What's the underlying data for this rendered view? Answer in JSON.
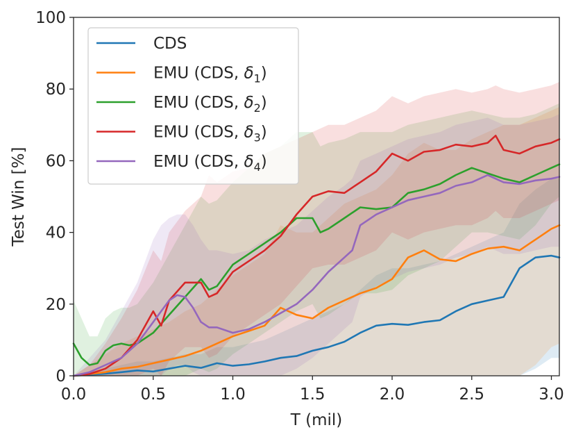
{
  "chart_data": {
    "type": "line",
    "title": "",
    "xlabel": "T (mil)",
    "ylabel": "Test Win [%]",
    "xlim": [
      0.0,
      3.05
    ],
    "ylim": [
      0,
      100
    ],
    "xticks": [
      0.0,
      0.5,
      1.0,
      1.5,
      2.0,
      2.5,
      3.0
    ],
    "xtick_labels": [
      "0.0",
      "0.5",
      "1.0",
      "1.5",
      "2.0",
      "2.5",
      "3.0"
    ],
    "yticks": [
      0,
      20,
      40,
      60,
      80,
      100
    ],
    "ytick_labels": [
      "0",
      "20",
      "40",
      "60",
      "80",
      "100"
    ],
    "grid": false,
    "legend_position": "top-left",
    "series": [
      {
        "name": "CDS",
        "legend": {
          "prefix": "CDS",
          "symbol": "",
          "sub": "",
          "suffix": ""
        },
        "color": "#1f77b4",
        "x": [
          0.0,
          0.1,
          0.2,
          0.3,
          0.4,
          0.5,
          0.6,
          0.7,
          0.8,
          0.9,
          1.0,
          1.1,
          1.2,
          1.3,
          1.4,
          1.5,
          1.6,
          1.7,
          1.8,
          1.9,
          2.0,
          2.1,
          2.2,
          2.3,
          2.4,
          2.5,
          2.6,
          2.7,
          2.8,
          2.9,
          3.0,
          3.05
        ],
        "y": [
          0.0,
          0.3,
          0.6,
          1.0,
          1.5,
          1.2,
          2.0,
          2.8,
          2.2,
          3.5,
          2.8,
          3.2,
          4.0,
          5.0,
          5.5,
          7.0,
          8.0,
          9.5,
          12.0,
          14.0,
          14.5,
          14.2,
          15.0,
          15.5,
          18.0,
          20.0,
          21.0,
          22.0,
          30.0,
          33.0,
          33.5,
          33.0
        ],
        "band_low": [
          0.0,
          0.0,
          0.0,
          0.0,
          0.0,
          0.0,
          0.0,
          0.0,
          0.0,
          0.0,
          0.0,
          0.0,
          0.0,
          0.0,
          0.0,
          0.0,
          0.0,
          0.0,
          0.0,
          0.0,
          0.0,
          0.0,
          0.0,
          0.0,
          0.0,
          0.0,
          0.0,
          0.0,
          0.0,
          2.0,
          5.0,
          5.0
        ],
        "band_high": [
          0.0,
          1.0,
          2.0,
          3.0,
          4.0,
          4.0,
          5.0,
          6.0,
          6.0,
          8.0,
          8.0,
          9.0,
          10.0,
          12.0,
          14.0,
          16.0,
          18.0,
          20.0,
          24.0,
          28.0,
          30.0,
          30.0,
          31.0,
          32.0,
          34.0,
          36.0,
          38.0,
          40.0,
          48.0,
          52.0,
          55.0,
          55.0
        ]
      },
      {
        "name": "EMU (CDS, δ1)",
        "legend": {
          "prefix": "EMU (CDS, ",
          "symbol": "δ",
          "sub": "1",
          "suffix": ")"
        },
        "color": "#ff7f0e",
        "x": [
          0.0,
          0.1,
          0.2,
          0.3,
          0.4,
          0.5,
          0.6,
          0.7,
          0.8,
          0.9,
          1.0,
          1.1,
          1.2,
          1.3,
          1.4,
          1.5,
          1.6,
          1.7,
          1.8,
          1.9,
          2.0,
          2.1,
          2.2,
          2.3,
          2.4,
          2.5,
          2.6,
          2.7,
          2.8,
          2.9,
          3.0,
          3.05
        ],
        "y": [
          0.0,
          0.5,
          1.0,
          2.0,
          2.5,
          3.5,
          4.5,
          5.5,
          7.0,
          9.0,
          11.0,
          12.5,
          14.0,
          19.0,
          17.0,
          16.0,
          19.0,
          21.0,
          23.0,
          24.5,
          27.0,
          33.0,
          35.0,
          32.5,
          32.0,
          34.0,
          35.5,
          36.0,
          35.0,
          38.0,
          41.0,
          42.0
        ],
        "band_low": [
          0.0,
          0.0,
          0.0,
          0.0,
          0.0,
          0.0,
          0.0,
          0.0,
          0.0,
          0.0,
          0.0,
          0.0,
          0.0,
          0.0,
          0.0,
          0.0,
          0.0,
          0.0,
          0.0,
          0.0,
          0.0,
          0.0,
          0.0,
          0.0,
          0.0,
          0.0,
          0.0,
          0.0,
          0.0,
          3.0,
          8.0,
          9.0
        ],
        "band_high": [
          0.0,
          3.0,
          6.0,
          9.0,
          11.0,
          13.0,
          15.0,
          18.0,
          20.0,
          24.0,
          28.0,
          31.0,
          34.0,
          42.0,
          40.0,
          40.0,
          44.0,
          48.0,
          50.0,
          52.0,
          56.0,
          62.0,
          65.0,
          63.0,
          63.0,
          66.0,
          68.0,
          70.0,
          70.0,
          72.0,
          74.0,
          75.0
        ]
      },
      {
        "name": "EMU (CDS, δ2)",
        "legend": {
          "prefix": "EMU (CDS, ",
          "symbol": "δ",
          "sub": "2",
          "suffix": ")"
        },
        "color": "#2ca02c",
        "x": [
          0.0,
          0.05,
          0.1,
          0.15,
          0.2,
          0.25,
          0.3,
          0.35,
          0.4,
          0.5,
          0.6,
          0.7,
          0.8,
          0.85,
          0.9,
          1.0,
          1.1,
          1.2,
          1.3,
          1.4,
          1.5,
          1.55,
          1.6,
          1.7,
          1.8,
          1.9,
          2.0,
          2.1,
          2.2,
          2.3,
          2.4,
          2.5,
          2.6,
          2.7,
          2.8,
          2.9,
          3.0,
          3.05
        ],
        "y": [
          9.0,
          5.0,
          3.0,
          3.5,
          7.0,
          8.5,
          9.0,
          8.5,
          9.0,
          12.0,
          17.0,
          22.0,
          27.0,
          24.0,
          25.0,
          31.0,
          34.0,
          37.0,
          40.0,
          44.0,
          44.0,
          40.0,
          41.0,
          44.0,
          47.0,
          46.5,
          47.0,
          51.0,
          52.0,
          53.5,
          56.0,
          58.0,
          56.5,
          55.0,
          54.0,
          56.0,
          58.0,
          59.0
        ],
        "band_low": [
          0.0,
          0.0,
          0.0,
          0.0,
          0.0,
          0.0,
          0.0,
          0.0,
          0.0,
          0.0,
          0.0,
          0.0,
          2.0,
          1.0,
          2.0,
          6.0,
          9.0,
          12.0,
          15.0,
          18.0,
          20.0,
          16.0,
          17.0,
          20.0,
          23.0,
          23.0,
          24.0,
          28.0,
          30.0,
          32.0,
          36.0,
          40.0,
          40.0,
          39.0,
          38.0,
          42.0,
          48.0,
          50.0
        ],
        "band_high": [
          21.0,
          16.0,
          11.0,
          11.0,
          16.0,
          18.0,
          19.0,
          19.0,
          20.0,
          26.0,
          34.0,
          42.0,
          50.0,
          48.0,
          49.0,
          54.0,
          58.0,
          62.0,
          64.0,
          68.0,
          68.0,
          64.0,
          65.0,
          66.0,
          68.0,
          68.0,
          68.0,
          70.0,
          71.0,
          72.0,
          73.0,
          74.0,
          73.0,
          72.0,
          72.0,
          73.0,
          75.0,
          76.0
        ]
      },
      {
        "name": "EMU (CDS, δ3)",
        "legend": {
          "prefix": "EMU (CDS, ",
          "symbol": "δ",
          "sub": "3",
          "suffix": ")"
        },
        "color": "#d62728",
        "x": [
          0.0,
          0.1,
          0.2,
          0.3,
          0.4,
          0.5,
          0.55,
          0.6,
          0.7,
          0.8,
          0.85,
          0.9,
          1.0,
          1.1,
          1.2,
          1.3,
          1.4,
          1.5,
          1.6,
          1.7,
          1.8,
          1.9,
          2.0,
          2.1,
          2.2,
          2.3,
          2.4,
          2.5,
          2.6,
          2.65,
          2.7,
          2.8,
          2.9,
          3.0,
          3.05
        ],
        "y": [
          0.0,
          0.5,
          2.0,
          5.0,
          10.0,
          18.0,
          14.0,
          21.0,
          26.0,
          26.0,
          22.0,
          23.0,
          29.0,
          32.0,
          35.0,
          39.0,
          45.0,
          50.0,
          51.5,
          51.0,
          54.0,
          57.0,
          62.0,
          60.0,
          62.5,
          63.0,
          64.5,
          64.0,
          65.0,
          67.0,
          63.0,
          62.0,
          64.0,
          65.0,
          66.0
        ],
        "band_low": [
          0.0,
          0.0,
          0.0,
          0.0,
          0.0,
          2.0,
          0.0,
          4.0,
          8.0,
          8.0,
          5.0,
          6.0,
          11.0,
          14.0,
          17.0,
          20.0,
          25.0,
          30.0,
          31.0,
          31.0,
          33.0,
          35.0,
          40.0,
          38.0,
          40.0,
          41.0,
          42.0,
          42.0,
          44.0,
          46.0,
          44.0,
          44.0,
          46.0,
          48.0,
          49.0
        ],
        "band_high": [
          0.0,
          3.0,
          9.0,
          16.0,
          24.0,
          35.0,
          32.0,
          40.0,
          46.0,
          50.0,
          56.0,
          54.0,
          57.0,
          58.0,
          62.0,
          64.0,
          66.0,
          68.0,
          70.0,
          70.0,
          72.0,
          74.0,
          78.0,
          76.0,
          78.0,
          79.0,
          80.0,
          79.0,
          80.0,
          81.0,
          80.0,
          79.0,
          80.0,
          81.0,
          82.0
        ]
      },
      {
        "name": "EMU (CDS, δ4)",
        "legend": {
          "prefix": "EMU (CDS, ",
          "symbol": "δ",
          "sub": "4",
          "suffix": ")"
        },
        "color": "#9467bd",
        "x": [
          0.0,
          0.1,
          0.2,
          0.3,
          0.4,
          0.5,
          0.55,
          0.6,
          0.65,
          0.7,
          0.75,
          0.8,
          0.85,
          0.9,
          1.0,
          1.1,
          1.2,
          1.3,
          1.4,
          1.5,
          1.6,
          1.7,
          1.75,
          1.8,
          1.9,
          2.0,
          2.1,
          2.2,
          2.3,
          2.4,
          2.5,
          2.6,
          2.7,
          2.8,
          2.9,
          3.0,
          3.05
        ],
        "y": [
          0.0,
          1.0,
          3.0,
          5.0,
          9.0,
          15.0,
          18.0,
          21.0,
          22.5,
          22.0,
          19.0,
          15.0,
          13.5,
          13.5,
          12.0,
          13.0,
          15.0,
          17.5,
          20.0,
          24.0,
          29.0,
          33.0,
          35.0,
          42.0,
          45.0,
          47.0,
          49.0,
          50.0,
          51.0,
          53.0,
          54.0,
          56.0,
          54.0,
          53.5,
          54.5,
          55.0,
          55.5
        ],
        "band_low": [
          0.0,
          0.0,
          0.0,
          0.0,
          0.0,
          0.0,
          0.0,
          2.0,
          3.0,
          3.0,
          1.0,
          0.0,
          0.0,
          0.0,
          0.0,
          0.0,
          0.0,
          0.0,
          2.0,
          5.0,
          9.0,
          13.0,
          15.0,
          22.0,
          25.0,
          27.0,
          29.0,
          30.0,
          31.0,
          33.0,
          34.0,
          36.0,
          34.0,
          34.0,
          35.0,
          36.0,
          36.0
        ],
        "band_high": [
          0.0,
          5.0,
          10.0,
          18.0,
          26.0,
          38.0,
          42.0,
          44.0,
          45.0,
          45.0,
          42.0,
          38.0,
          35.0,
          35.0,
          34.0,
          35.0,
          38.0,
          40.0,
          42.0,
          46.0,
          50.0,
          53.0,
          55.0,
          60.0,
          62.0,
          64.0,
          66.0,
          67.0,
          68.0,
          70.0,
          71.0,
          72.0,
          70.0,
          70.0,
          71.0,
          72.0,
          73.0
        ]
      }
    ]
  }
}
